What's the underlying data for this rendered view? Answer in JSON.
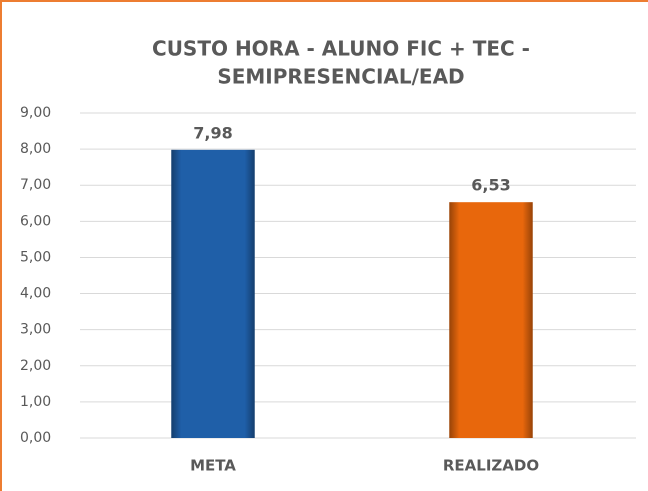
{
  "chart_data": {
    "type": "bar",
    "title": [
      "CUSTO HORA - ALUNO FIC + TEC -",
      "SEMIPRESENCIAL/EAD"
    ],
    "categories": [
      "META",
      "REALIZADO"
    ],
    "values": [
      7.98,
      6.53
    ],
    "value_labels": [
      "7,98",
      "6,53"
    ],
    "colors": [
      "#1f5fa8",
      "#e8670c"
    ],
    "ylim": [
      0,
      9
    ],
    "yticks": [
      {
        "value": 0,
        "label": "0,00"
      },
      {
        "value": 1,
        "label": "1,00"
      },
      {
        "value": 2,
        "label": "2,00"
      },
      {
        "value": 3,
        "label": "3,00"
      },
      {
        "value": 4,
        "label": "4,00"
      },
      {
        "value": 5,
        "label": "5,00"
      },
      {
        "value": 6,
        "label": "6,00"
      },
      {
        "value": 7,
        "label": "7,00"
      },
      {
        "value": 8,
        "label": "8,00"
      },
      {
        "value": 9,
        "label": "9,00"
      }
    ],
    "grid": true
  }
}
